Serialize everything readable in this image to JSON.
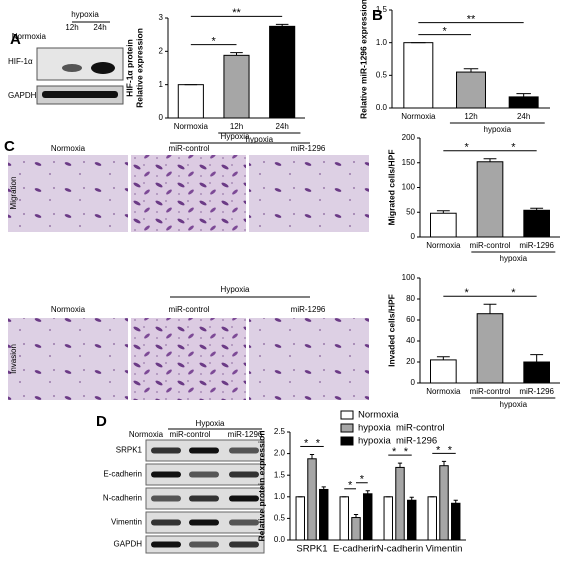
{
  "figure": {
    "panel_letters": [
      "A",
      "B",
      "C",
      "D"
    ],
    "blot_a": {
      "columns": [
        "Normoxia",
        "12h",
        "24h"
      ],
      "group": "hypoxia",
      "rows": [
        "HIF-1α",
        "GAPDH"
      ]
    },
    "micrographs": {
      "columns": [
        "Normoxia",
        "miR-control",
        "miR-1296"
      ],
      "group": "Hypoxia",
      "rows": [
        "Migration",
        "Invasion"
      ]
    },
    "blot_d": {
      "columns": [
        "Normoxia",
        "miR-control",
        "miR-1296"
      ],
      "group": "Hypoxia",
      "rows": [
        "SRPK1",
        "E-cadherin",
        "N-cadherin",
        "Vimentin",
        "GAPDH"
      ]
    }
  },
  "chart_data": [
    {
      "type": "bar",
      "ylabel": [
        "HIF-1α protein",
        "Relative expression"
      ],
      "categories": [
        "Normoxia",
        "12h",
        "24h"
      ],
      "values": [
        1,
        1.88,
        2.75
      ],
      "errors": [
        0,
        0.08,
        0.06
      ],
      "colors": [
        "#ffffff",
        "#a6a6a6",
        "#000000"
      ],
      "ylim": [
        0,
        3
      ],
      "yticks": [
        0,
        1,
        2,
        3
      ],
      "group": {
        "label": "hypoxia",
        "from": 1,
        "to": 2
      },
      "annotations": [
        {
          "label": "*",
          "pair": [
            0,
            1
          ]
        },
        {
          "label": "**",
          "pair": [
            0,
            2
          ]
        }
      ]
    },
    {
      "type": "bar",
      "ylabel": [
        "Relative miR-1296 expression"
      ],
      "categories": [
        "Normoxia",
        "12h",
        "24h"
      ],
      "values": [
        1.0,
        0.55,
        0.17
      ],
      "errors": [
        0,
        0.05,
        0.05
      ],
      "colors": [
        "#ffffff",
        "#a6a6a6",
        "#000000"
      ],
      "ylim": [
        0,
        1.5
      ],
      "yticks": [
        {
          "value": 0,
          "label": "0.0"
        },
        {
          "value": 0.5,
          "label": "0.5"
        },
        {
          "value": 1,
          "label": "1.0"
        },
        {
          "value": 1.5,
          "label": "1.5"
        }
      ],
      "group": {
        "label": "hypoxia",
        "from": 1,
        "to": 2
      },
      "annotations": [
        {
          "label": "*",
          "pair": [
            0,
            1
          ]
        },
        {
          "label": "**",
          "pair": [
            0,
            2
          ]
        }
      ]
    },
    {
      "type": "bar",
      "ylabel": [
        "Migrated cells/HPF"
      ],
      "categories": [
        "Normoxia",
        "miR-control",
        "miR-1296"
      ],
      "values": [
        48,
        152,
        54
      ],
      "errors": [
        5,
        6,
        4
      ],
      "colors": [
        "#ffffff",
        "#a6a6a6",
        "#000000"
      ],
      "ylim": [
        0,
        200
      ],
      "yticks": [
        0,
        50,
        100,
        150,
        200
      ],
      "group": {
        "label": "hypoxia",
        "from": 1,
        "to": 2
      },
      "annotations": [
        {
          "label": "*",
          "pair": [
            0,
            1
          ]
        },
        {
          "label": "*",
          "pair": [
            1,
            2
          ]
        }
      ]
    },
    {
      "type": "bar",
      "ylabel": [
        "Invaded cells/HPF"
      ],
      "categories": [
        "Normoxia",
        "miR-control",
        "miR-1296"
      ],
      "values": [
        22,
        66,
        20
      ],
      "errors": [
        3,
        9,
        7
      ],
      "colors": [
        "#ffffff",
        "#a6a6a6",
        "#000000"
      ],
      "ylim": [
        0,
        100
      ],
      "yticks": [
        0,
        20,
        40,
        60,
        80,
        100
      ],
      "group": {
        "label": "hypoxia",
        "from": 1,
        "to": 2
      },
      "annotations": [
        {
          "label": "*",
          "pair": [
            0,
            1
          ]
        },
        {
          "label": "*",
          "pair": [
            1,
            2
          ]
        }
      ]
    },
    {
      "type": "grouped-bar",
      "ylabel": [
        "Relative protein expression"
      ],
      "categories": [
        "SRPK1",
        "E-cadherin",
        "N-cadherin",
        "Vimentin"
      ],
      "series": [
        {
          "name": "Normoxia",
          "color": "#ffffff",
          "values": [
            1,
            1,
            1,
            1
          ],
          "errors": [
            0,
            0,
            0,
            0
          ]
        },
        {
          "name": "hypoxia  miR-control",
          "color": "#a6a6a6",
          "values": [
            1.88,
            0.52,
            1.68,
            1.72
          ],
          "errors": [
            0.1,
            0.07,
            0.1,
            0.1
          ]
        },
        {
          "name": "hypoxia  miR-1296",
          "color": "#000000",
          "values": [
            1.17,
            1.07,
            0.92,
            0.85
          ],
          "errors": [
            0.06,
            0.07,
            0.07,
            0.07
          ]
        }
      ],
      "ylim": [
        0,
        2.5
      ],
      "yticks": [
        {
          "value": 0,
          "label": "0.0"
        },
        {
          "value": 0.5,
          "label": "0.5"
        },
        {
          "value": 1,
          "label": "1.0"
        },
        {
          "value": 1.5,
          "label": "1.5"
        },
        {
          "value": 2,
          "label": "2.0"
        },
        {
          "value": 2.5,
          "label": "2.5"
        }
      ],
      "legend": "top-right",
      "annotations": [
        {
          "label": "*",
          "category": 0,
          "pair": [
            0,
            1
          ]
        },
        {
          "label": "*",
          "category": 0,
          "pair": [
            1,
            2
          ]
        },
        {
          "label": "*",
          "category": 1,
          "pair": [
            0,
            1
          ]
        },
        {
          "label": "*",
          "category": 1,
          "pair": [
            1,
            2
          ]
        },
        {
          "label": "*",
          "category": 2,
          "pair": [
            0,
            1
          ]
        },
        {
          "label": "*",
          "category": 2,
          "pair": [
            1,
            2
          ]
        },
        {
          "label": "*",
          "category": 3,
          "pair": [
            0,
            1
          ]
        },
        {
          "label": "*",
          "category": 3,
          "pair": [
            1,
            2
          ]
        }
      ]
    }
  ]
}
